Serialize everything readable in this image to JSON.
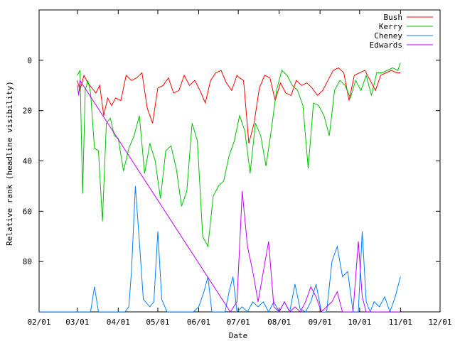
{
  "chart_data": {
    "type": "line",
    "title": "",
    "xlabel": "Date",
    "ylabel": "Relative rank (headline visibility)",
    "ylim": [
      100,
      -20
    ],
    "xlim": [
      "2004-02-01",
      "2004-12-01"
    ],
    "x_ticks": [
      "2004-02-01",
      "2004-03-01",
      "2004-04-01",
      "2004-05-01",
      "2004-06-01",
      "2004-07-01",
      "2004-08-01",
      "2004-09-01",
      "2004-10-01",
      "2004-11-01",
      "2004-12-01"
    ],
    "x_tick_labels": [
      "02/01",
      "03/01",
      "04/01",
      "05/01",
      "06/01",
      "07/01",
      "08/01",
      "09/01",
      "10/01",
      "11/01",
      "12/01"
    ],
    "y_ticks": [
      0,
      20,
      40,
      60,
      80
    ],
    "y_tick_labels": [
      "0",
      "20",
      "40",
      "60",
      "80"
    ],
    "grid": false,
    "legend_position": "top-right",
    "colors": {
      "Bush": "#ff0000",
      "Kerry": "#00c000",
      "Cheney": "#0080ff",
      "Edwards": "#c000ff"
    },
    "series": [
      {
        "name": "Bush",
        "x": [
          "2004-03-01",
          "2004-03-03",
          "2004-03-06",
          "2004-03-09",
          "2004-03-12",
          "2004-03-15",
          "2004-03-18",
          "2004-03-21",
          "2004-03-24",
          "2004-03-27",
          "2004-03-30",
          "2004-04-03",
          "2004-04-07",
          "2004-04-11",
          "2004-04-15",
          "2004-04-19",
          "2004-04-23",
          "2004-04-27",
          "2004-05-01",
          "2004-05-05",
          "2004-05-09",
          "2004-05-13",
          "2004-05-17",
          "2004-05-21",
          "2004-05-25",
          "2004-05-29",
          "2004-06-02",
          "2004-06-06",
          "2004-06-10",
          "2004-06-14",
          "2004-06-18",
          "2004-06-22",
          "2004-06-26",
          "2004-06-30",
          "2004-07-02",
          "2004-07-05",
          "2004-07-09",
          "2004-07-13",
          "2004-07-17",
          "2004-07-21",
          "2004-07-25",
          "2004-07-29",
          "2004-08-02",
          "2004-08-06",
          "2004-08-10",
          "2004-08-14",
          "2004-08-18",
          "2004-08-22",
          "2004-08-26",
          "2004-08-30",
          "2004-09-03",
          "2004-09-07",
          "2004-09-11",
          "2004-09-15",
          "2004-09-19",
          "2004-09-23",
          "2004-09-27",
          "2004-10-01",
          "2004-10-05",
          "2004-10-09",
          "2004-10-13",
          "2004-10-17",
          "2004-10-21",
          "2004-10-25",
          "2004-10-29",
          "2004-11-01"
        ],
        "values": [
          8,
          12,
          6,
          9,
          11,
          13,
          10,
          22,
          15,
          18,
          15,
          16,
          6,
          8,
          7,
          5,
          19,
          25,
          11,
          10,
          7,
          13,
          12,
          6,
          10,
          8,
          12,
          17,
          8,
          5,
          4,
          9,
          12,
          6,
          7,
          8,
          33,
          25,
          11,
          6,
          7,
          16,
          9,
          13,
          14,
          8,
          10,
          9,
          11,
          14,
          12,
          8,
          4,
          3,
          5,
          16,
          6,
          5,
          4,
          8,
          12,
          6,
          5,
          4,
          5,
          5
        ]
      },
      {
        "name": "Kerry",
        "x": [
          "2004-03-01",
          "2004-03-03",
          "2004-03-05",
          "2004-03-07",
          "2004-03-09",
          "2004-03-11",
          "2004-03-14",
          "2004-03-17",
          "2004-03-20",
          "2004-03-23",
          "2004-03-26",
          "2004-03-29",
          "2004-04-01",
          "2004-04-05",
          "2004-04-09",
          "2004-04-13",
          "2004-04-17",
          "2004-04-21",
          "2004-04-25",
          "2004-04-29",
          "2004-05-03",
          "2004-05-07",
          "2004-05-11",
          "2004-05-15",
          "2004-05-19",
          "2004-05-23",
          "2004-05-27",
          "2004-05-31",
          "2004-06-04",
          "2004-06-08",
          "2004-06-12",
          "2004-06-16",
          "2004-06-20",
          "2004-06-24",
          "2004-06-28",
          "2004-07-02",
          "2004-07-06",
          "2004-07-10",
          "2004-07-14",
          "2004-07-18",
          "2004-07-22",
          "2004-07-26",
          "2004-07-30",
          "2004-08-03",
          "2004-08-07",
          "2004-08-11",
          "2004-08-15",
          "2004-08-19",
          "2004-08-23",
          "2004-08-27",
          "2004-08-31",
          "2004-09-04",
          "2004-09-08",
          "2004-09-12",
          "2004-09-16",
          "2004-09-20",
          "2004-09-24",
          "2004-09-28",
          "2004-10-02",
          "2004-10-06",
          "2004-10-10",
          "2004-10-14",
          "2004-10-18",
          "2004-10-22",
          "2004-10-26",
          "2004-10-30",
          "2004-11-01"
        ],
        "values": [
          6,
          4,
          53,
          12,
          8,
          13,
          35,
          36,
          64,
          25,
          23,
          30,
          31,
          44,
          35,
          30,
          22,
          45,
          33,
          40,
          55,
          36,
          34,
          43,
          58,
          52,
          25,
          32,
          70,
          74,
          54,
          50,
          48,
          38,
          32,
          22,
          28,
          45,
          25,
          30,
          42,
          28,
          12,
          4,
          6,
          10,
          12,
          18,
          43,
          17,
          18,
          22,
          30,
          12,
          8,
          10,
          15,
          8,
          12,
          6,
          14,
          5,
          5,
          4,
          3,
          4,
          1
        ]
      },
      {
        "name": "Cheney",
        "x": [
          "2004-02-01",
          "2004-03-01",
          "2004-03-05",
          "2004-03-08",
          "2004-03-11",
          "2004-03-14",
          "2004-03-17",
          "2004-03-21",
          "2004-03-25",
          "2004-03-29",
          "2004-04-02",
          "2004-04-06",
          "2004-04-09",
          "2004-04-11",
          "2004-04-14",
          "2004-04-17",
          "2004-04-20",
          "2004-04-25",
          "2004-04-28",
          "2004-05-01",
          "2004-05-04",
          "2004-05-08",
          "2004-05-11",
          "2004-05-14",
          "2004-05-18",
          "2004-05-24",
          "2004-05-28",
          "2004-06-01",
          "2004-06-05",
          "2004-06-08",
          "2004-06-11",
          "2004-06-14",
          "2004-06-18",
          "2004-06-21",
          "2004-06-24",
          "2004-06-27",
          "2004-06-30",
          "2004-07-04",
          "2004-07-08",
          "2004-07-12",
          "2004-07-16",
          "2004-07-20",
          "2004-07-24",
          "2004-07-28",
          "2004-08-01",
          "2004-08-05",
          "2004-08-09",
          "2004-08-13",
          "2004-08-17",
          "2004-08-21",
          "2004-08-25",
          "2004-08-29",
          "2004-09-02",
          "2004-09-06",
          "2004-09-10",
          "2004-09-14",
          "2004-09-18",
          "2004-09-22",
          "2004-09-26",
          "2004-09-30",
          "2004-10-03",
          "2004-10-06",
          "2004-10-09",
          "2004-10-12",
          "2004-10-16",
          "2004-10-20",
          "2004-10-24",
          "2004-10-28",
          "2004-11-01"
        ],
        "values": [
          100,
          100,
          100,
          100,
          100,
          90,
          100,
          100,
          100,
          100,
          100,
          100,
          98,
          84,
          50,
          72,
          95,
          98,
          96,
          68,
          95,
          100,
          100,
          100,
          100,
          100,
          100,
          98,
          92,
          86,
          100,
          100,
          100,
          100,
          92,
          86,
          100,
          98,
          100,
          96,
          98,
          96,
          100,
          96,
          100,
          96,
          100,
          89,
          99,
          100,
          96,
          89,
          100,
          100,
          80,
          74,
          86,
          84,
          100,
          100,
          68,
          96,
          100,
          96,
          98,
          94,
          100,
          94,
          86
        ]
      },
      {
        "name": "Edwards",
        "x": [
          "2004-03-01",
          "2004-03-02",
          "2004-03-03",
          "2004-06-25",
          "2004-06-30",
          "2004-07-04",
          "2004-07-08",
          "2004-07-12",
          "2004-07-16",
          "2004-07-20",
          "2004-07-24",
          "2004-07-28",
          "2004-08-01",
          "2004-08-05",
          "2004-08-09",
          "2004-08-13",
          "2004-08-17",
          "2004-08-21",
          "2004-08-25",
          "2004-08-29",
          "2004-09-02",
          "2004-09-06",
          "2004-09-10",
          "2004-09-14",
          "2004-09-18",
          "2004-09-22",
          "2004-09-26",
          "2004-09-30",
          "2004-10-03",
          "2004-10-06",
          "2004-10-09",
          "2004-10-12",
          "2004-10-16",
          "2004-10-20",
          "2004-10-24",
          "2004-10-28",
          "2004-11-01"
        ],
        "values": [
          10,
          14,
          8,
          100,
          96,
          52,
          74,
          84,
          96,
          84,
          72,
          98,
          100,
          96,
          100,
          98,
          100,
          96,
          90,
          94,
          100,
          98,
          96,
          92,
          100,
          100,
          100,
          72,
          94,
          100,
          100,
          100,
          100,
          100,
          100,
          100,
          100
        ]
      }
    ]
  }
}
